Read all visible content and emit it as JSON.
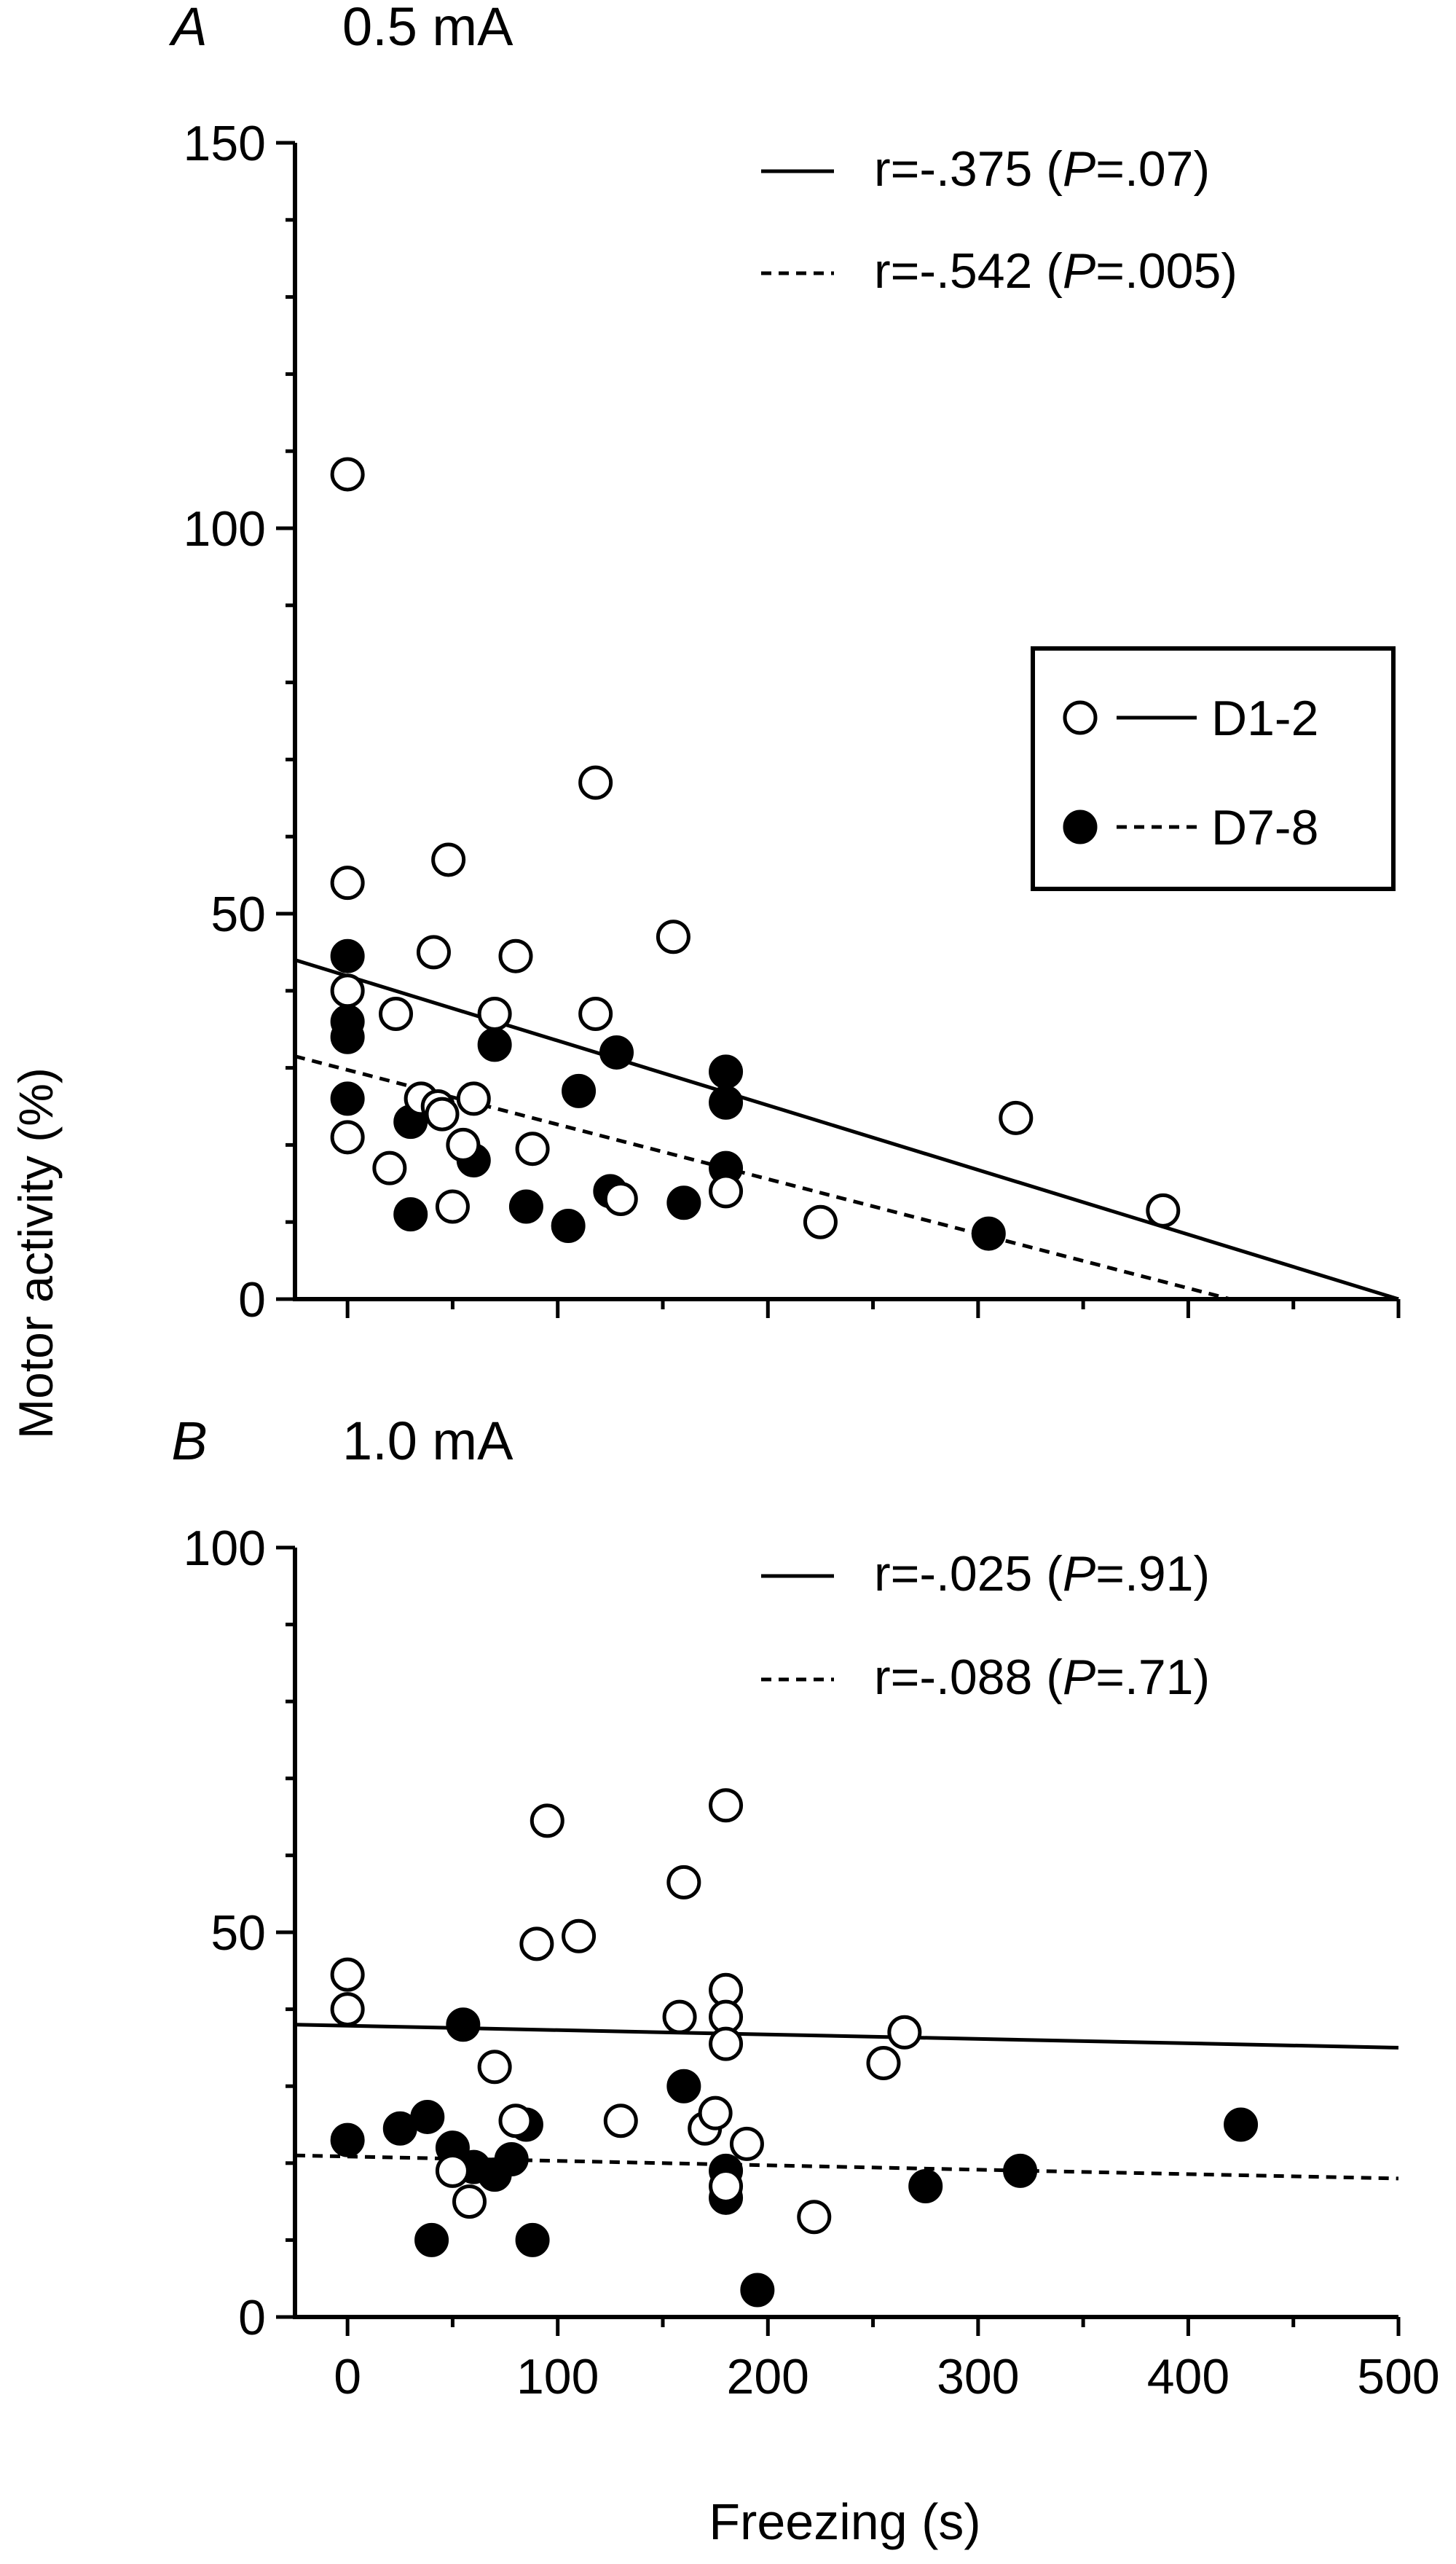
{
  "chart_data": [
    {
      "panel": "A",
      "type": "scatter",
      "title": "0.5 mA",
      "xlim": [
        -25,
        500
      ],
      "ylim": [
        0,
        150
      ],
      "xticks": [
        0,
        100,
        200,
        300,
        400,
        500
      ],
      "yticks": [
        0,
        50,
        100,
        150
      ],
      "y_tick_labels": [
        "0",
        "50",
        "100",
        "150"
      ],
      "annotations": [
        {
          "prefix": "r=-.375 (",
          "p": "P",
          "suffix": "=.07)",
          "style": "solid"
        },
        {
          "prefix": "r=-.542 (",
          "p": "P",
          "suffix": "=.005)",
          "style": "dashed"
        }
      ],
      "legend": {
        "placement": "right",
        "entries": [
          {
            "label": "D1-2",
            "marker": "open",
            "line": "solid"
          },
          {
            "label": "D7-8",
            "marker": "filled",
            "line": "dashed"
          }
        ]
      },
      "series": [
        {
          "name": "D1-2",
          "marker": "open",
          "points": [
            [
              0,
              107
            ],
            [
              0,
              54
            ],
            [
              0,
              40
            ],
            [
              0,
              21
            ],
            [
              20,
              17
            ],
            [
              23,
              37
            ],
            [
              35,
              26
            ],
            [
              41,
              45
            ],
            [
              43,
              25
            ],
            [
              45,
              24
            ],
            [
              48,
              57
            ],
            [
              50,
              12
            ],
            [
              55,
              20
            ],
            [
              60,
              26
            ],
            [
              70,
              37
            ],
            [
              80,
              44.5
            ],
            [
              88,
              19.5
            ],
            [
              118,
              67
            ],
            [
              118,
              37
            ],
            [
              130,
              13
            ],
            [
              155,
              47
            ],
            [
              180,
              14
            ],
            [
              225,
              10
            ],
            [
              318,
              23.5
            ],
            [
              388,
              11.5
            ]
          ],
          "fit": [
            [
              -25,
              44
            ],
            [
              500,
              0
            ]
          ]
        },
        {
          "name": "D7-8",
          "marker": "filled",
          "points": [
            [
              0,
              44.5
            ],
            [
              0,
              36
            ],
            [
              0,
              34
            ],
            [
              0,
              26
            ],
            [
              30,
              23
            ],
            [
              30,
              11
            ],
            [
              60,
              18
            ],
            [
              70,
              33
            ],
            [
              85,
              12
            ],
            [
              105,
              9.5
            ],
            [
              110,
              27
            ],
            [
              125,
              14
            ],
            [
              128,
              32
            ],
            [
              160,
              12.5
            ],
            [
              180,
              29.5
            ],
            [
              180,
              25.5
            ],
            [
              180,
              17
            ],
            [
              305,
              8.5
            ]
          ],
          "fit": [
            [
              -25,
              31.5
            ],
            [
              420,
              0
            ]
          ]
        }
      ]
    },
    {
      "panel": "B",
      "type": "scatter",
      "title": "1.0 mA",
      "xlabel": "Freezing (s)",
      "xlim": [
        -25,
        500
      ],
      "ylim": [
        0,
        100
      ],
      "xticks": [
        0,
        100,
        200,
        300,
        400,
        500
      ],
      "x_tick_labels": [
        "0",
        "100",
        "200",
        "300",
        "400",
        "500"
      ],
      "yticks": [
        0,
        50,
        100
      ],
      "y_tick_labels": [
        "0",
        "50",
        "100"
      ],
      "annotations": [
        {
          "prefix": "r=-.025 (",
          "p": "P",
          "suffix": "=.91)",
          "style": "solid"
        },
        {
          "prefix": "r=-.088 (",
          "p": "P",
          "suffix": "=.71)",
          "style": "dashed"
        }
      ],
      "series": [
        {
          "name": "D1-2",
          "marker": "open",
          "points": [
            [
              0,
              44.5
            ],
            [
              0,
              40
            ],
            [
              50,
              19
            ],
            [
              58,
              15
            ],
            [
              70,
              32.5
            ],
            [
              80,
              25.5
            ],
            [
              90,
              48.5
            ],
            [
              95,
              64.5
            ],
            [
              110,
              49.5
            ],
            [
              130,
              25.5
            ],
            [
              158,
              39
            ],
            [
              160,
              56.5
            ],
            [
              170,
              24.5
            ],
            [
              175,
              26.5
            ],
            [
              180,
              66.5
            ],
            [
              180,
              42.5
            ],
            [
              180,
              39
            ],
            [
              180,
              35.5
            ],
            [
              180,
              17
            ],
            [
              190,
              22.5
            ],
            [
              222,
              13
            ],
            [
              255,
              33
            ],
            [
              265,
              37
            ]
          ],
          "fit": [
            [
              -25,
              38
            ],
            [
              500,
              35
            ]
          ]
        },
        {
          "name": "D7-8",
          "marker": "filled",
          "points": [
            [
              0,
              23
            ],
            [
              25,
              24.5
            ],
            [
              38,
              26
            ],
            [
              40,
              10
            ],
            [
              50,
              22
            ],
            [
              55,
              38
            ],
            [
              60,
              19.5
            ],
            [
              70,
              18.5
            ],
            [
              78,
              20.5
            ],
            [
              85,
              25
            ],
            [
              88,
              10
            ],
            [
              160,
              30
            ],
            [
              180,
              19
            ],
            [
              180,
              15.5
            ],
            [
              195,
              3.5
            ],
            [
              275,
              17
            ],
            [
              320,
              19
            ],
            [
              425,
              25
            ]
          ],
          "fit": [
            [
              -25,
              21
            ],
            [
              500,
              18
            ]
          ]
        }
      ]
    }
  ],
  "shared_ylabel": "Motor activity  (%)"
}
